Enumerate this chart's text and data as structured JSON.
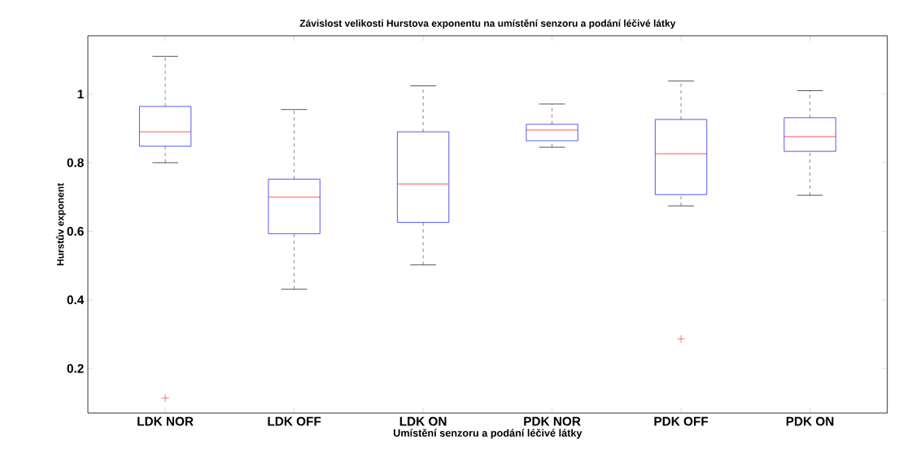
{
  "chart_data": {
    "type": "box",
    "title": "Závislost velikosti Hurstova exponentu na umístění senzoru a podání léčivé látky",
    "xlabel": "Umístění senzoru a podání léčivé látky",
    "ylabel": "Hurstův exponent",
    "categories": [
      "LDK NOR",
      "LDK OFF",
      "LDK ON",
      "PDK NOR",
      "PDK OFF",
      "PDK ON"
    ],
    "ylim": [
      0.07,
      1.17
    ],
    "yticks": [
      0.2,
      0.4,
      0.6,
      0.8,
      1
    ],
    "marker": "cross",
    "grid": false,
    "series": [
      {
        "color": "#0000ff",
        "boxes": [
          {
            "low": 0.8,
            "q1": 0.848,
            "median": 0.89,
            "q3": 0.964,
            "high": 1.11,
            "outliers": [
              0.114
            ]
          },
          {
            "low": 0.431,
            "q1": 0.593,
            "median": 0.7,
            "q3": 0.752,
            "high": 0.955
          },
          {
            "low": 0.502,
            "q1": 0.626,
            "median": 0.738,
            "q3": 0.89,
            "high": 1.024
          },
          {
            "low": 0.845,
            "q1": 0.864,
            "median": 0.895,
            "q3": 0.912,
            "high": 0.971
          },
          {
            "low": 0.674,
            "q1": 0.707,
            "median": 0.826,
            "q3": 0.926,
            "high": 1.038,
            "outliers": [
              0.286
            ]
          },
          {
            "low": 0.705,
            "q1": 0.833,
            "median": 0.876,
            "q3": 0.931,
            "high": 1.01
          }
        ]
      }
    ]
  }
}
